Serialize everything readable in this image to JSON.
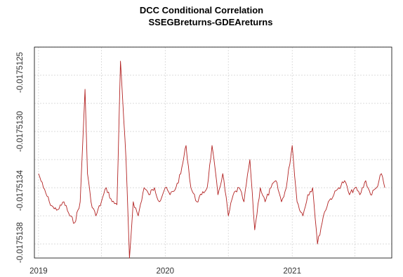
{
  "chart_data": {
    "type": "line",
    "title": "DCC Conditional Correlation",
    "subtitle": "SSEGBreturns-GDEAreturns",
    "xlabel": "",
    "ylabel": "",
    "x_ticks": [
      "2019",
      "2020",
      "2021"
    ],
    "y_ticks": [
      "-0.0175125",
      "-0.0175130",
      "-0.0175134",
      "-0.0175138"
    ],
    "ylim": [
      -0.0175139,
      -0.0175124
    ],
    "grid": true,
    "series": [
      {
        "color": "#b22222",
        "x": [
          "2019-01-01",
          "2019-01-15",
          "2019-02-01",
          "2019-02-15",
          "2019-03-01",
          "2019-03-15",
          "2019-04-01",
          "2019-04-15",
          "2019-05-01",
          "2019-05-15",
          "2019-05-22",
          "2019-06-01",
          "2019-06-15",
          "2019-07-01",
          "2019-07-15",
          "2019-08-01",
          "2019-08-15",
          "2019-08-25",
          "2019-09-10",
          "2019-09-20",
          "2019-10-01",
          "2019-10-15",
          "2019-11-01",
          "2019-11-15",
          "2019-12-01",
          "2019-12-15",
          "2020-01-01",
          "2020-01-15",
          "2020-02-01",
          "2020-02-15",
          "2020-03-01",
          "2020-03-15",
          "2020-04-01",
          "2020-04-15",
          "2020-05-01",
          "2020-05-15",
          "2020-06-01",
          "2020-06-15",
          "2020-07-01",
          "2020-07-15",
          "2020-08-01",
          "2020-08-15",
          "2020-09-01",
          "2020-09-15",
          "2020-10-01",
          "2020-10-15",
          "2020-11-01",
          "2020-11-15",
          "2020-12-01",
          "2020-12-15",
          "2021-01-01",
          "2021-01-15",
          "2021-02-01",
          "2021-02-15",
          "2021-03-01",
          "2021-03-15",
          "2021-04-01",
          "2021-04-15",
          "2021-05-01",
          "2021-05-15",
          "2021-06-01",
          "2021-06-15",
          "2021-07-01",
          "2021-07-15",
          "2021-08-01",
          "2021-08-15",
          "2021-09-01",
          "2021-09-15",
          "2021-09-25"
        ],
        "y": [
          -0.0175133,
          -0.0175134,
          -0.0175135,
          -0.01751355,
          -0.01751355,
          -0.0175135,
          -0.0175136,
          -0.01751365,
          -0.0175135,
          -0.0175127,
          -0.0175133,
          -0.0175135,
          -0.0175136,
          -0.0175135,
          -0.0175134,
          -0.0175135,
          -0.01751352,
          -0.0175125,
          -0.0175132,
          -0.0175139,
          -0.0175135,
          -0.0175136,
          -0.0175134,
          -0.01751345,
          -0.0175134,
          -0.0175135,
          -0.0175134,
          -0.01751345,
          -0.0175134,
          -0.0175133,
          -0.0175131,
          -0.0175134,
          -0.0175135,
          -0.01751345,
          -0.0175134,
          -0.0175131,
          -0.01751345,
          -0.0175133,
          -0.0175136,
          -0.01751345,
          -0.0175134,
          -0.0175135,
          -0.0175132,
          -0.0175137,
          -0.0175134,
          -0.0175135,
          -0.0175134,
          -0.01751335,
          -0.0175135,
          -0.0175134,
          -0.0175131,
          -0.0175135,
          -0.0175136,
          -0.01751345,
          -0.0175134,
          -0.0175138,
          -0.0175136,
          -0.0175135,
          -0.01751345,
          -0.0175134,
          -0.01751335,
          -0.01751345,
          -0.0175134,
          -0.01751345,
          -0.01751335,
          -0.01751345,
          -0.0175134,
          -0.0175133,
          -0.0175134
        ]
      }
    ]
  }
}
